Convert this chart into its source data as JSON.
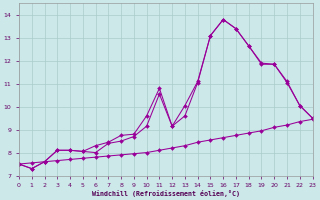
{
  "xlabel": "Windchill (Refroidissement éolien,°C)",
  "bg_color": "#cce8e8",
  "line_color": "#990099",
  "grid_color": "#aacccc",
  "xlim": [
    0,
    23
  ],
  "ylim": [
    7.0,
    14.5
  ],
  "yticks": [
    7,
    8,
    9,
    10,
    11,
    12,
    13,
    14
  ],
  "xticks": [
    0,
    1,
    2,
    3,
    4,
    5,
    6,
    7,
    8,
    9,
    10,
    11,
    12,
    13,
    14,
    15,
    16,
    17,
    18,
    19,
    20,
    21,
    22,
    23
  ],
  "curve_straight_x": [
    0,
    1,
    2,
    3,
    4,
    5,
    6,
    7,
    8,
    9,
    10,
    11,
    12,
    13,
    14,
    15,
    16,
    17,
    18,
    19,
    20,
    21,
    22,
    23
  ],
  "curve_straight_y": [
    7.5,
    7.55,
    7.6,
    7.65,
    7.7,
    7.75,
    7.8,
    7.85,
    7.9,
    7.95,
    8.0,
    8.1,
    8.2,
    8.3,
    8.45,
    8.55,
    8.65,
    8.75,
    8.85,
    8.95,
    9.1,
    9.2,
    9.35,
    9.45
  ],
  "curve_mid_x": [
    0,
    1,
    2,
    3,
    4,
    5,
    6,
    7,
    8,
    9,
    10,
    11,
    12,
    13,
    14,
    15,
    16,
    17,
    18,
    19,
    20,
    21,
    22,
    23
  ],
  "curve_mid_y": [
    7.5,
    7.3,
    7.6,
    8.1,
    8.1,
    8.05,
    8.3,
    8.45,
    8.75,
    8.8,
    9.6,
    10.8,
    9.15,
    10.05,
    11.1,
    13.1,
    13.8,
    13.4,
    12.65,
    11.9,
    11.85,
    11.1,
    10.05,
    9.5
  ],
  "curve_top_x": [
    0,
    1,
    2,
    3,
    4,
    5,
    6,
    7,
    8,
    9,
    10,
    11,
    12,
    13,
    14,
    15,
    16,
    17,
    18,
    19,
    20,
    21,
    22,
    23
  ],
  "curve_top_y": [
    7.5,
    7.3,
    7.6,
    8.1,
    8.1,
    8.05,
    8.0,
    8.4,
    8.5,
    8.7,
    9.15,
    10.55,
    9.15,
    9.6,
    11.05,
    13.1,
    13.8,
    13.4,
    12.65,
    11.85,
    11.85,
    11.05,
    10.05,
    9.5
  ]
}
